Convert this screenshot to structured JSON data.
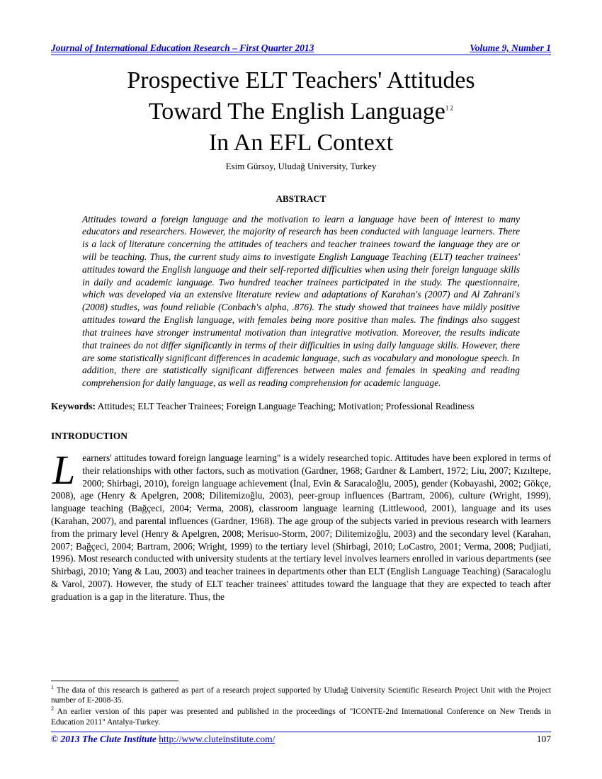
{
  "header": {
    "journal": "Journal of International Education Research – First Quarter 2013",
    "volume": "Volume 9, Number 1"
  },
  "title_line1": "Prospective ELT Teachers' Attitudes",
  "title_line2": "Toward The English Language",
  "title_line3": "In An EFL Context",
  "title_fn1": "1",
  "title_fn2": "2",
  "author": "Esim Gürsoy, Uludağ University, Turkey",
  "abstract_heading": "ABSTRACT",
  "abstract_body": "Attitudes toward a foreign language and the motivation to learn a language have been of interest to many educators and researchers. However, the majority of research has been conducted with language learners. There is a lack of literature concerning the attitudes of teachers and teacher trainees toward the language they are or will be teaching. Thus, the current study aims to investigate English Language Teaching (ELT) teacher trainees' attitudes toward the English language and their self-reported difficulties when using their foreign language skills in daily and academic language. Two hundred teacher trainees participated in the study. The questionnaire, which was developed via an extensive literature review and adaptations of Karahan's (2007) and Al Zahrani's (2008) studies, was found reliable (Conbach's alpha, .876). The study showed that trainees have mildly positive attitudes toward the English language, with females being more positive than males. The findings also suggest that trainees have stronger instrumental motivation than integrative motivation. Moreover, the results indicate that trainees do not differ significantly in terms of their difficulties in using daily language skills. However, there are some statistically significant differences in academic language, such as vocabulary and monologue speech. In addition, there are statistically significant differences between males and females in speaking and reading comprehension for daily language, as well as reading comprehension for academic language.",
  "keywords_label": "Keywords:",
  "keywords_text": "  Attitudes; ELT Teacher Trainees; Foreign Language Teaching; Motivation; Professional Readiness",
  "intro_heading": "INTRODUCTION",
  "intro_dropcap": "L",
  "intro_body": "earners' attitudes toward foreign language learning\" is a widely researched topic. Attitudes have been explored in terms of their relationships with other factors, such as motivation (Gardner, 1968; Gardner & Lambert, 1972; Liu, 2007; Kızıltepe, 2000; Shirbagi, 2010), foreign language achievement (İnal, Evin & Saracaloğlu, 2005), gender (Kobayashi, 2002; Gökçe, 2008), age (Henry & Apelgren, 2008; Dilitemizoğlu, 2003), peer-group influences (Bartram, 2006), culture (Wright, 1999), language teaching (Bağçeci, 2004; Verma, 2008), classroom language learning (Littlewood, 2001), language and its uses (Karahan, 2007), and parental influences (Gardner, 1968). The age group of the subjects varied in previous research with learners from the primary level (Henry & Apelgren, 2008; Merisuo-Storm, 2007; Dilitemizoğlu, 2003) and the secondary level (Karahan, 2007; Bağçeci, 2004; Bartram, 2006; Wright, 1999) to the tertiary level (Shirbagi, 2010; LoCastro, 2001; Verma, 2008; Pudjiati, 1996). Most research conducted with university students at the tertiary level involves learners enrolled in various departments (see Shirbagi, 2010; Yang & Lau, 2003) and teacher trainees in departments other than ELT (English Language Teaching) (Saracaloglu & Varol, 2007). However, the study of ELT teacher trainees' attitudes toward the language that they are expected to teach after graduation is a gap in the literature. Thus, the",
  "footnote1": " The data of this research is gathered as part of a research project supported by Uludağ University Scientific Research Project Unit with the Project number of E-2008-35.",
  "footnote2": " An earlier version of this paper was presented and published in the proceedings of \"ICONTE-2nd International Conference on New Trends in Education 2011\" Antalya-Turkey.",
  "footer": {
    "copyright": "© 2013 The Clute Institute ",
    "url": "http://www.cluteinstitute.com/",
    "page": "107"
  },
  "colors": {
    "link_blue": "#0000d0",
    "text": "#000000",
    "background": "#ffffff"
  }
}
